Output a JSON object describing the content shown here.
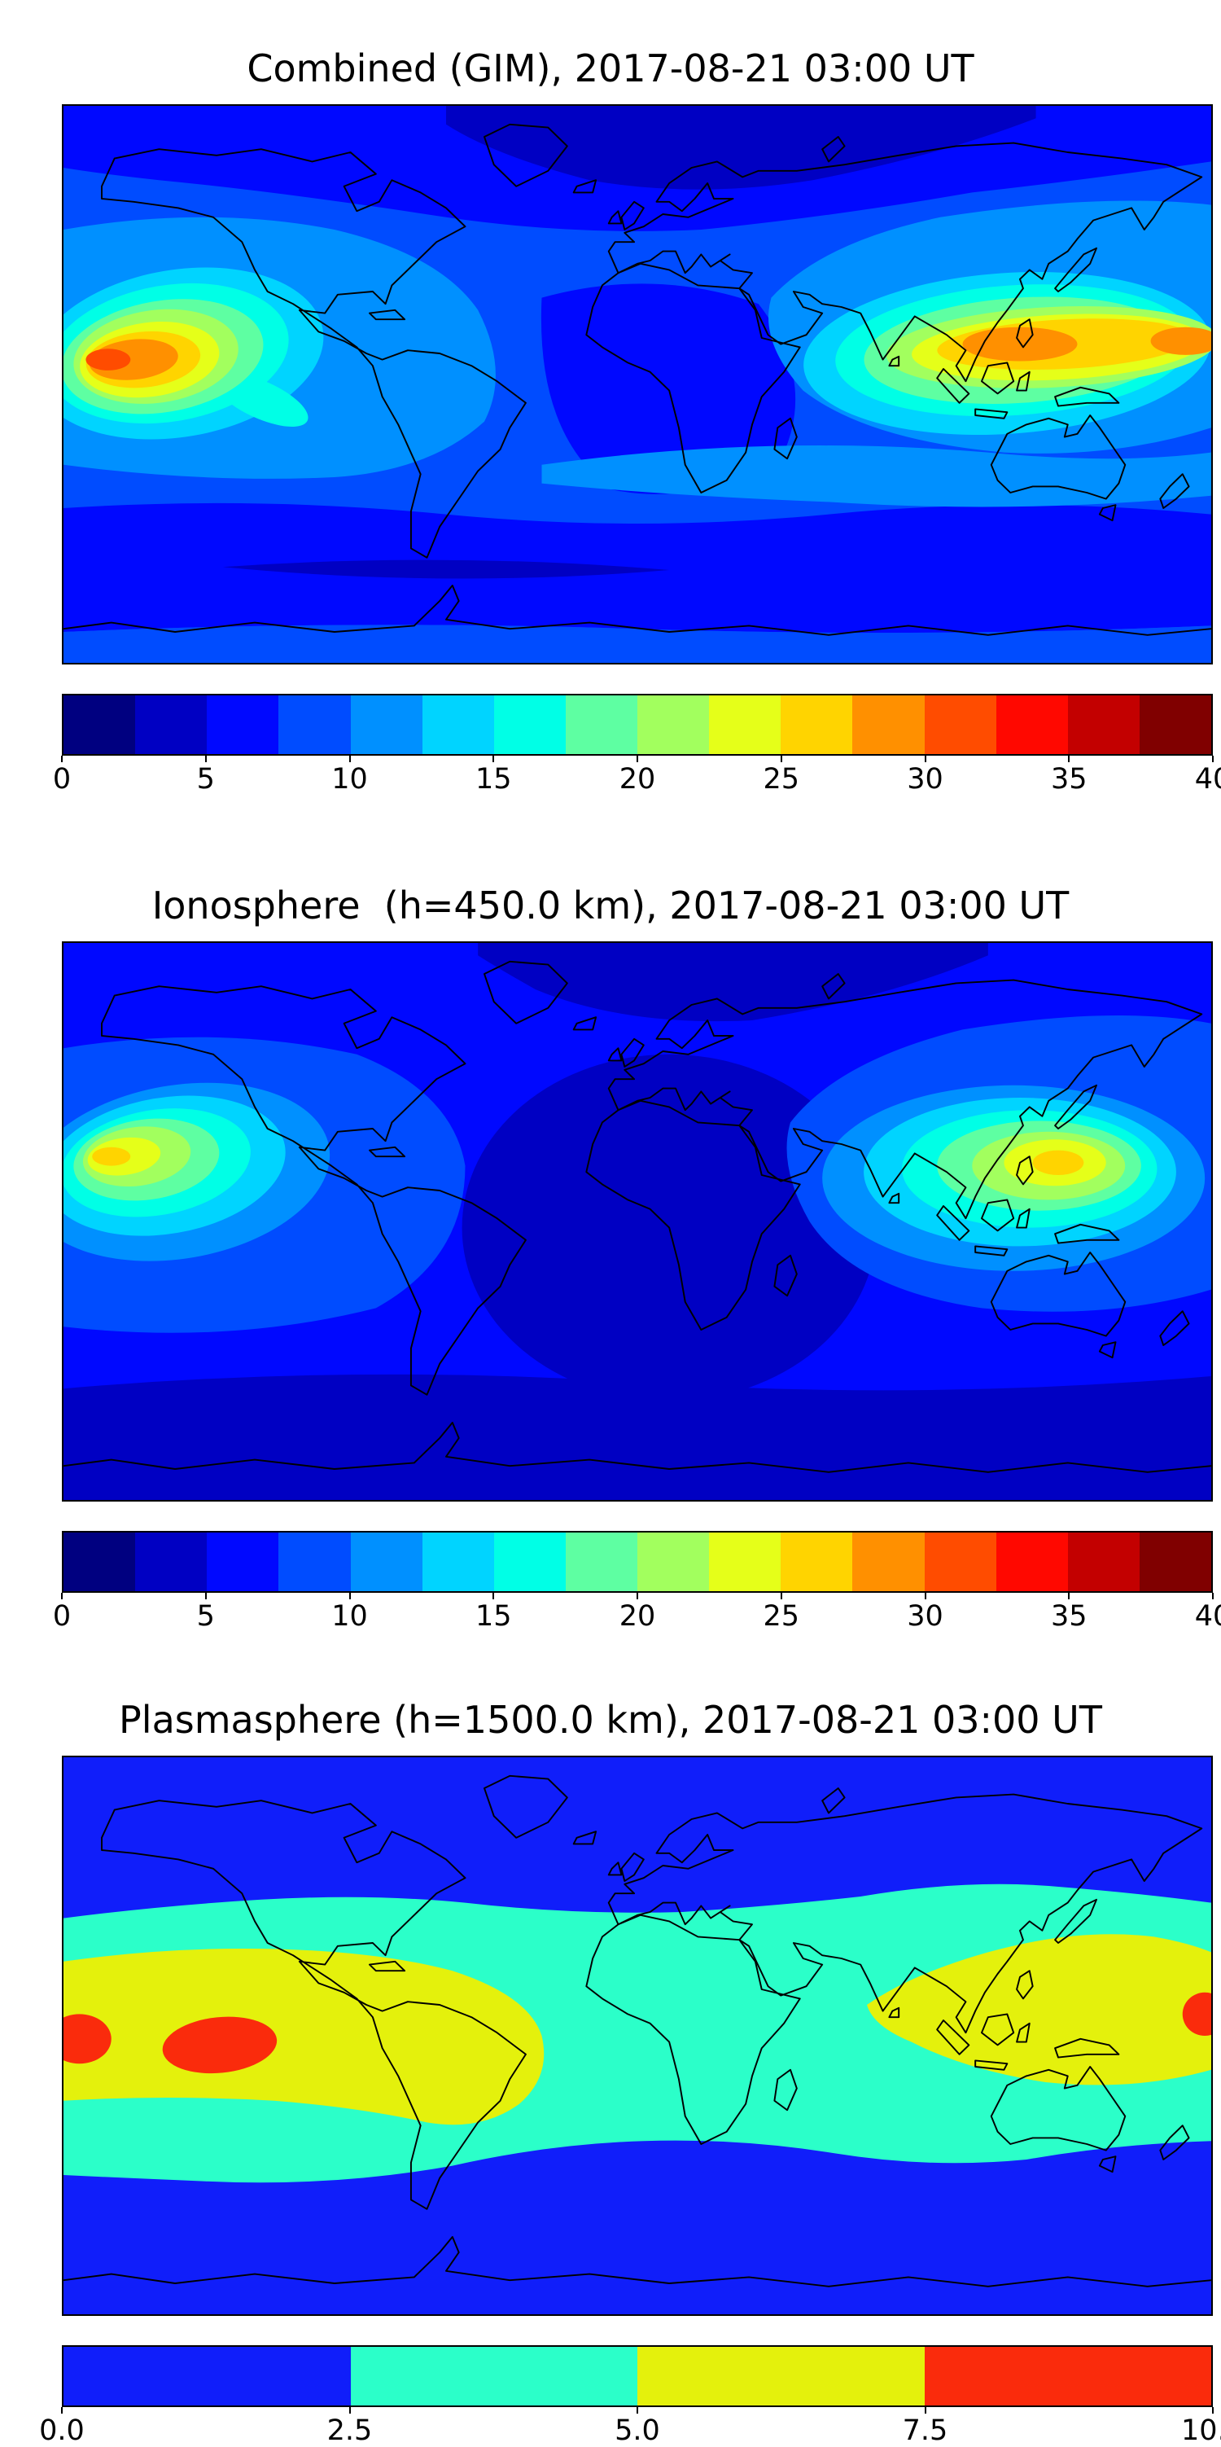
{
  "figure": {
    "background": "#ffffff",
    "panels": [
      {
        "id": "combined",
        "title": "Combined (GIM), 2017-08-21 03:00 UT",
        "colorbar": {
          "min": 0,
          "max": 40,
          "ticks": [
            "0",
            "5",
            "10",
            "15",
            "20",
            "25",
            "30",
            "35",
            "40"
          ],
          "colors": [
            "#000080",
            "#0000C3",
            "#0008FF",
            "#004CFF",
            "#0090FF",
            "#00D4FF",
            "#00FFE6",
            "#5EFFA2",
            "#A2FF5E",
            "#E5FF19",
            "#FFD400",
            "#FF9000",
            "#FF4C00",
            "#FF0800",
            "#C30000",
            "#800000"
          ]
        }
      },
      {
        "id": "ionosphere",
        "title": "Ionosphere  (h=450.0 km), 2017-08-21 03:00 UT",
        "colorbar": {
          "min": 0,
          "max": 40,
          "ticks": [
            "0",
            "5",
            "10",
            "15",
            "20",
            "25",
            "30",
            "35",
            "40"
          ],
          "colors": [
            "#000080",
            "#0000C3",
            "#0008FF",
            "#004CFF",
            "#0090FF",
            "#00D4FF",
            "#00FFE6",
            "#5EFFA2",
            "#A2FF5E",
            "#E5FF19",
            "#FFD400",
            "#FF9000",
            "#FF4C00",
            "#FF0800",
            "#C30000",
            "#800000"
          ]
        }
      },
      {
        "id": "plasmasphere",
        "title": "Plasmasphere (h=1500.0 km), 2017-08-21 03:00 UT",
        "colorbar": {
          "min": 0,
          "max": 10,
          "ticks": [
            "0.0",
            "2.5",
            "5.0",
            "7.5",
            "10.0"
          ],
          "colors": [
            "#101EFA",
            "#2BFFC9",
            "#E4F10C",
            "#FA2B0C"
          ]
        }
      }
    ]
  },
  "chart_data": [
    {
      "type": "heatmap",
      "title": "Combined (GIM), 2017-08-21 03:00 UT",
      "projection": "equirectangular",
      "x_range_lon": [
        -180,
        180
      ],
      "y_range_lat": [
        -90,
        90
      ],
      "colormap": "jet",
      "levels": [
        0,
        2.5,
        5,
        7.5,
        10,
        12.5,
        15,
        17.5,
        20,
        22.5,
        25,
        27.5,
        30,
        32.5,
        35,
        37.5,
        40
      ],
      "colorbar_ticks": [
        0,
        5,
        10,
        15,
        20,
        25,
        30,
        35,
        40
      ],
      "coastlines": true,
      "features": [
        {
          "name": "central-pacific-maximum",
          "lon_approx": -155,
          "lat_approx": 8,
          "value_approx": 32
        },
        {
          "name": "southeast-asia-west-pacific-maximum",
          "lon_approx": 120,
          "lat_approx": 11,
          "value_approx": 31
        },
        {
          "name": "high-northern-latitude-minimum",
          "lon_approx": 20,
          "lat_approx": 72,
          "value_approx": 3
        },
        {
          "name": "southern-high-latitude-minimum",
          "lon_approx": -60,
          "lat_approx": -60,
          "value_approx": 4
        },
        {
          "name": "background-mid-latitude-level",
          "value_approx": 8
        }
      ]
    },
    {
      "type": "heatmap",
      "title": "Ionosphere  (h=450.0 km), 2017-08-21 03:00 UT",
      "projection": "equirectangular",
      "x_range_lon": [
        -180,
        180
      ],
      "y_range_lat": [
        -90,
        90
      ],
      "colormap": "jet",
      "levels": [
        0,
        2.5,
        5,
        7.5,
        10,
        12.5,
        15,
        17.5,
        20,
        22.5,
        25,
        27.5,
        30,
        32.5,
        35,
        37.5,
        40
      ],
      "colorbar_ticks": [
        0,
        5,
        10,
        15,
        20,
        25,
        30,
        35,
        40
      ],
      "coastlines": true,
      "features": [
        {
          "name": "central-pacific-maximum",
          "lon_approx": -160,
          "lat_approx": 20,
          "value_approx": 26
        },
        {
          "name": "southeast-asia-west-pacific-maximum",
          "lon_approx": 130,
          "lat_approx": 18,
          "value_approx": 26
        },
        {
          "name": "africa-atlantic-night-minimum",
          "lon_approx": 10,
          "lat_approx": -10,
          "value_approx": 2
        },
        {
          "name": "background-mid-latitude-level",
          "value_approx": 6
        }
      ]
    },
    {
      "type": "heatmap",
      "title": "Plasmasphere (h=1500.0 km), 2017-08-21 03:00 UT",
      "projection": "equirectangular",
      "x_range_lon": [
        -180,
        180
      ],
      "y_range_lat": [
        -90,
        90
      ],
      "colormap": "jet",
      "levels": [
        0,
        2.5,
        5,
        7.5,
        10
      ],
      "colorbar_ticks": [
        0.0,
        2.5,
        5.0,
        7.5,
        10.0
      ],
      "coastlines": true,
      "features": [
        {
          "name": "equatorial-band-cyan",
          "lat_extent_approx": [
            -42,
            38
          ],
          "value_range": [
            2.5,
            5
          ]
        },
        {
          "name": "equatorial-band-yellow-west-lobe",
          "lon_extent_approx": [
            -180,
            -20
          ],
          "value_range": [
            5,
            7.5
          ]
        },
        {
          "name": "equatorial-band-yellow-east-lobe",
          "lon_extent_approx": [
            72,
            180
          ],
          "value_range": [
            5,
            7.5
          ]
        },
        {
          "name": "red-maximum-central-pacific",
          "lon_approx": -131,
          "lat_approx": -3,
          "value_approx": 9
        },
        {
          "name": "red-maximum-west-pacific-edge",
          "lon_approx": 178,
          "lat_approx": 7,
          "value_approx": 9
        },
        {
          "name": "polar-background",
          "value_range": [
            0,
            2.5
          ]
        }
      ]
    }
  ]
}
